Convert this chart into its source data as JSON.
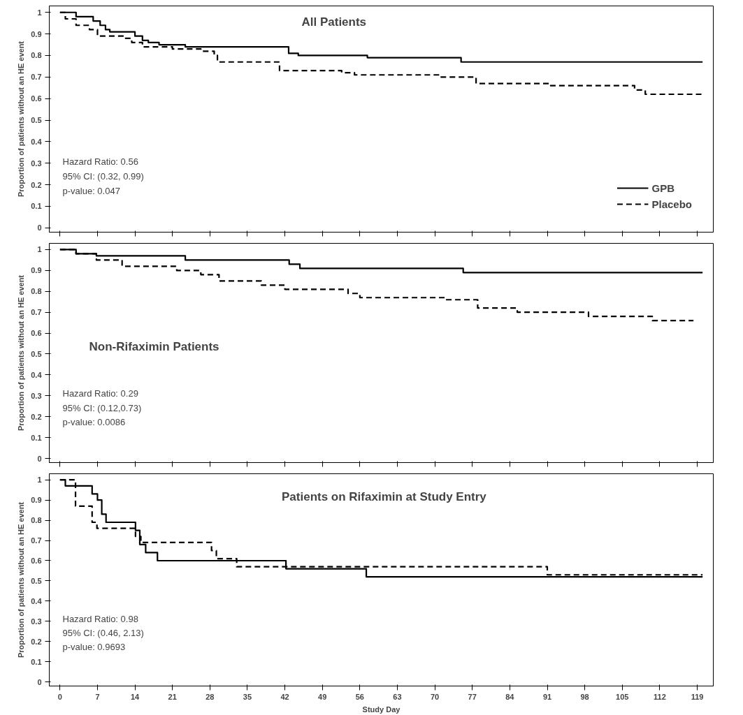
{
  "chart_data": [
    {
      "type": "step",
      "title": "All Patients",
      "ylabel": "Proportion of patients without an HE event",
      "xlim": [
        -2,
        122
      ],
      "ylim": [
        -0.02,
        1.03
      ],
      "xticks": [
        0,
        7,
        14,
        21,
        28,
        35,
        42,
        49,
        56,
        63,
        70,
        77,
        84,
        91,
        98,
        105,
        112,
        119
      ],
      "yticks": [
        0,
        0.1,
        0.2,
        0.3,
        0.4,
        0.5,
        0.6,
        0.7,
        0.8,
        0.9,
        1
      ],
      "tick_labels": "y",
      "grid": false,
      "legend": "bottom right",
      "series": [
        {
          "name": "GPB",
          "color": "#000000",
          "line_style": "solid",
          "x": [
            0,
            3,
            6.2,
            7.5,
            8.5,
            9.3,
            14,
            15.4,
            16.5,
            18.5,
            23.4,
            42.7,
            44.5,
            57.4,
            74.9,
            120
          ],
          "values": [
            1.0,
            0.98,
            0.96,
            0.94,
            0.92,
            0.91,
            0.89,
            0.87,
            0.86,
            0.85,
            0.84,
            0.81,
            0.8,
            0.79,
            0.77,
            0.77
          ]
        },
        {
          "name": "Placebo",
          "color": "#000000",
          "line_style": "dashed",
          "x": [
            0,
            1,
            3,
            5.5,
            7,
            12,
            13.4,
            15.4,
            21,
            26.3,
            28.8,
            29.4,
            41,
            52.6,
            55,
            71,
            77.7,
            91.5,
            107.3,
            109.3,
            120
          ],
          "values": [
            1.0,
            0.97,
            0.94,
            0.92,
            0.89,
            0.88,
            0.86,
            0.84,
            0.83,
            0.82,
            0.8,
            0.77,
            0.73,
            0.72,
            0.71,
            0.7,
            0.67,
            0.66,
            0.64,
            0.62,
            0.62
          ]
        }
      ],
      "annotations": [
        "Hazard Ratio: 0.56",
        "95% CI: (0.32, 0.99)",
        "p-value:  0.047"
      ]
    },
    {
      "type": "step",
      "title": "Non-Rifaximin Patients",
      "ylabel": "Proportion of patients without an HE event",
      "xlim": [
        -2,
        122
      ],
      "ylim": [
        -0.02,
        1.03
      ],
      "xticks": [
        0,
        7,
        14,
        21,
        28,
        35,
        42,
        49,
        56,
        63,
        70,
        77,
        84,
        91,
        98,
        105,
        112,
        119
      ],
      "yticks": [
        0,
        0.1,
        0.2,
        0.3,
        0.4,
        0.5,
        0.6,
        0.7,
        0.8,
        0.9,
        1
      ],
      "tick_labels": "y",
      "grid": false,
      "series": [
        {
          "color": "#000000",
          "line_style": "solid",
          "x": [
            0,
            3,
            6.8,
            23.4,
            42.8,
            44.8,
            75.3,
            120
          ],
          "values": [
            1.0,
            0.98,
            0.97,
            0.95,
            0.93,
            0.91,
            0.89,
            0.89
          ]
        },
        {
          "color": "#000000",
          "line_style": "dashed",
          "x": [
            0,
            3,
            6.8,
            11.6,
            21.8,
            26.3,
            29.7,
            37.6,
            42,
            53.8,
            56,
            72,
            78,
            85.4,
            98.7,
            110.6,
            118.3
          ],
          "values": [
            1.0,
            0.98,
            0.95,
            0.92,
            0.9,
            0.88,
            0.85,
            0.83,
            0.81,
            0.79,
            0.77,
            0.76,
            0.72,
            0.7,
            0.68,
            0.66,
            0.66
          ]
        }
      ],
      "annotations": [
        "Hazard Ratio: 0.29",
        "95% CI: (0.12,0.73)",
        "p-value:  0.0086"
      ]
    },
    {
      "type": "step",
      "title": "Patients on Rifaximin at Study Entry",
      "xlabel": "Study Day",
      "ylabel": "Proportion of patients without an HE event",
      "xlim": [
        -2,
        122
      ],
      "ylim": [
        -0.02,
        1.03
      ],
      "xticks": [
        0,
        7,
        14,
        21,
        28,
        35,
        42,
        49,
        56,
        63,
        70,
        77,
        84,
        91,
        98,
        105,
        112,
        119
      ],
      "yticks": [
        0,
        0.1,
        0.2,
        0.3,
        0.4,
        0.5,
        0.6,
        0.7,
        0.8,
        0.9,
        1
      ],
      "grid": false,
      "series": [
        {
          "color": "#000000",
          "line_style": "solid",
          "x": [
            0,
            1,
            6,
            7,
            7.8,
            8.6,
            14.1,
            14.9,
            16,
            18.2,
            42.2,
            57.2,
            120
          ],
          "values": [
            1.0,
            0.97,
            0.93,
            0.9,
            0.83,
            0.79,
            0.75,
            0.68,
            0.64,
            0.6,
            0.56,
            0.52,
            0.52
          ]
        },
        {
          "color": "#000000",
          "line_style": "dashed",
          "x": [
            0,
            2.9,
            6,
            6.9,
            14.1,
            15.1,
            28.3,
            29.2,
            33,
            91,
            120
          ],
          "values": [
            1.0,
            0.87,
            0.79,
            0.76,
            0.72,
            0.69,
            0.65,
            0.61,
            0.57,
            0.53,
            0.53
          ]
        }
      ],
      "annotations": [
        "Hazard Ratio: 0.98",
        "95% CI: (0.46, 2.13)",
        "p-value:  0.9693"
      ]
    }
  ]
}
